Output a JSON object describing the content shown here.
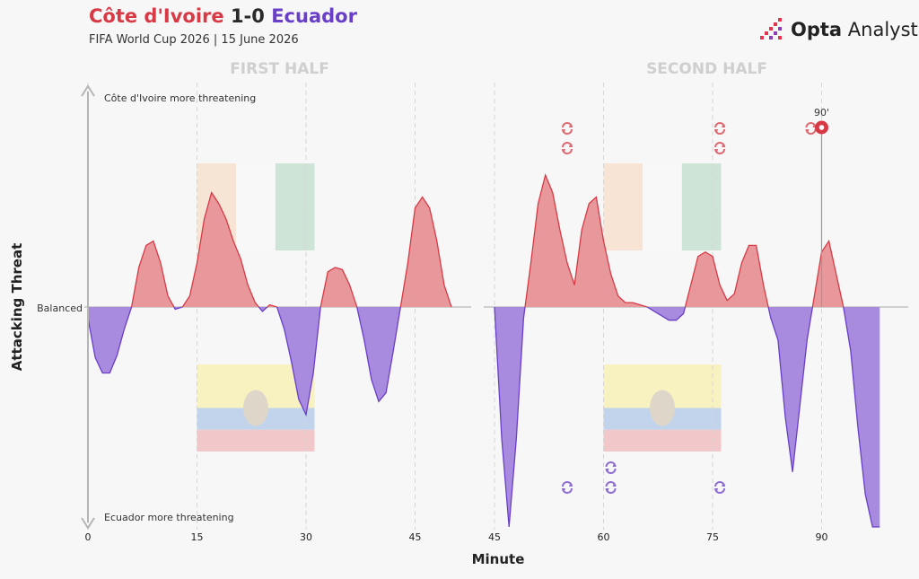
{
  "header": {
    "home_team": "Côte d'Ivoire",
    "score": "1-0",
    "away_team": "Ecuador",
    "subtitle": "FIFA World Cup 2026 | 15 June 2026",
    "brand_bold": "Opta",
    "brand_light": "Analyst"
  },
  "colors": {
    "home": "#d73a45",
    "home_fill": "#e8989b",
    "away": "#6a3fc8",
    "away_fill": "#a88ade"
  },
  "chart_data": {
    "type": "area",
    "xlabel": "Minute",
    "ylabel": "Attacking Threat",
    "ylim": [
      -1,
      1
    ],
    "top_label": "Côte d'Ivoire more threatening",
    "bottom_label": "Ecuador more threatening",
    "zero_label": "Balanced",
    "grid": "dashed vertical every 15 minutes",
    "halves": [
      {
        "label": "FIRST HALF",
        "xlim": [
          0,
          52
        ],
        "ticks": [
          "0",
          "15",
          "30",
          "45"
        ],
        "tick_values": [
          0,
          15,
          30,
          45
        ],
        "x": [
          0,
          1,
          2,
          3,
          4,
          5,
          6,
          7,
          8,
          9,
          10,
          11,
          12,
          13,
          14,
          15,
          16,
          17,
          18,
          19,
          20,
          21,
          22,
          23,
          24,
          25,
          26,
          27,
          28,
          29,
          30,
          31,
          32,
          33,
          34,
          35,
          36,
          37,
          38,
          39,
          40,
          41,
          42,
          43,
          44,
          45,
          46,
          47,
          48,
          49,
          50
        ],
        "y": [
          -0.05,
          -0.23,
          -0.3,
          -0.3,
          -0.22,
          -0.1,
          0,
          0.18,
          0.28,
          0.3,
          0.2,
          0.05,
          -0.01,
          0,
          0.05,
          0.2,
          0.4,
          0.52,
          0.47,
          0.4,
          0.3,
          0.22,
          0.1,
          0.02,
          -0.02,
          0.01,
          0,
          -0.1,
          -0.25,
          -0.42,
          -0.49,
          -0.3,
          0,
          0.16,
          0.18,
          0.17,
          0.1,
          0,
          -0.15,
          -0.33,
          -0.43,
          -0.39,
          -0.2,
          0,
          0.2,
          0.45,
          0.5,
          0.45,
          0.3,
          0.1,
          0
        ]
      },
      {
        "label": "SECOND HALF",
        "xlim": [
          45,
          98
        ],
        "ticks": [
          "45",
          "60",
          "75",
          "90"
        ],
        "tick_values": [
          45,
          60,
          75,
          90
        ],
        "x": [
          45,
          46,
          47,
          48,
          49,
          50,
          51,
          52,
          53,
          54,
          55,
          56,
          57,
          58,
          59,
          60,
          61,
          62,
          63,
          64,
          65,
          66,
          67,
          68,
          69,
          70,
          71,
          72,
          73,
          74,
          75,
          76,
          77,
          78,
          79,
          80,
          81,
          82,
          83,
          84,
          85,
          86,
          87,
          88,
          89,
          90,
          91,
          92,
          93,
          94,
          95,
          96,
          97,
          98
        ],
        "y": [
          0,
          -0.6,
          -1,
          -0.6,
          -0.05,
          0.2,
          0.47,
          0.6,
          0.52,
          0.35,
          0.2,
          0.1,
          0.35,
          0.47,
          0.5,
          0.3,
          0.15,
          0.05,
          0.02,
          0.02,
          0.01,
          0,
          -0.02,
          -0.04,
          -0.06,
          -0.06,
          -0.03,
          0.1,
          0.23,
          0.25,
          0.23,
          0.1,
          0.03,
          0.06,
          0.2,
          0.28,
          0.28,
          0.1,
          -0.05,
          -0.15,
          -0.5,
          -0.75,
          -0.45,
          -0.15,
          0.05,
          0.25,
          0.3,
          0.15,
          0,
          -0.2,
          -0.55,
          -0.85,
          -1,
          -1
        ]
      }
    ],
    "events": [
      {
        "type": "goal",
        "team": "home",
        "minute": 90,
        "label": "90'"
      }
    ],
    "substitutions": [
      {
        "team": "home",
        "minute": 55
      },
      {
        "team": "home",
        "minute": 55
      },
      {
        "team": "home",
        "minute": 76
      },
      {
        "team": "home",
        "minute": 76
      },
      {
        "team": "home",
        "minute": 90
      },
      {
        "team": "away",
        "minute": 55
      },
      {
        "team": "away",
        "minute": 61
      },
      {
        "team": "away",
        "minute": 61
      },
      {
        "team": "away",
        "minute": 76
      }
    ]
  }
}
